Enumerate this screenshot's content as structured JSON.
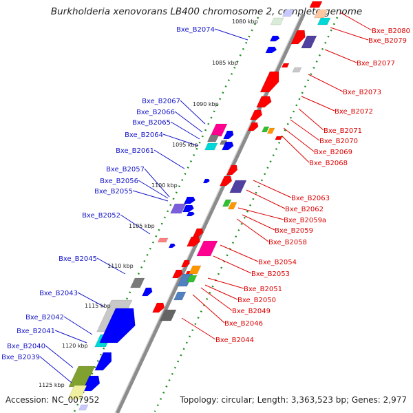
{
  "title": "Burkholderia xenovorans LB400 chromosome 2, complete genome",
  "footer": {
    "accession": "Accession: NC_007952",
    "summary": "Topology: circular; Length: 3,363,523 bp; Genes: 2,977"
  },
  "colors": {
    "left_label": "#1414c8",
    "right_label": "#dc0000",
    "backbone": "#808080",
    "dotted_ring": "#1e8c1e"
  },
  "ticks": [
    "1080 kbp",
    "1085 kbp",
    "1090 kbp",
    "1095 kbp",
    "1100 kbp",
    "1105 kbp",
    "1110 kbp",
    "1115 kbp",
    "1120 kbp",
    "1125 kbp"
  ],
  "left_labels": [
    "Bxe_B2074",
    "Bxe_B2067",
    "Bxe_B2066",
    "Bxe_B2065",
    "Bxe_B2064",
    "Bxe_B2061",
    "Bxe_B2057",
    "Bxe_B2056",
    "Bxe_B2055",
    "Bxe_B2052",
    "Bxe_B2045",
    "Bxe_B2043",
    "Bxe_B2042",
    "Bxe_B2041",
    "Bxe_B2040",
    "Bxe_B2039"
  ],
  "right_labels": [
    "Bxe_B2080",
    "Bxe_B2079",
    "Bxe_B2077",
    "Bxe_B2073",
    "Bxe_B2072",
    "Bxe_B2071",
    "Bxe_B2070",
    "Bxe_B2069",
    "Bxe_B2068",
    "Bxe_B2063",
    "Bxe_B2062",
    "Bxe_B2059a",
    "Bxe_B2059",
    "Bxe_B2058",
    "Bxe_B2054",
    "Bxe_B2053",
    "Bxe_B2051",
    "Bxe_B2050",
    "Bxe_B2049",
    "Bxe_B2046",
    "Bxe_B2044"
  ]
}
